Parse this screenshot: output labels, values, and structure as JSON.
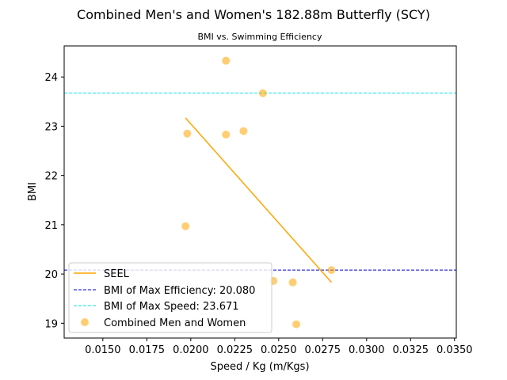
{
  "chart_data": {
    "type": "scatter",
    "title": "Combined Men's and Women's 182.88m Butterfly (SCY)",
    "subtitle": "BMI vs. Swimming Efficiency",
    "xlabel": "Speed / Kg (m/Kgs)",
    "ylabel": "BMI",
    "xlim": [
      0.0128,
      0.0351
    ],
    "ylim": [
      18.7,
      24.63
    ],
    "xticks": [
      "0.0150",
      "0.0175",
      "0.0200",
      "0.0225",
      "0.0250",
      "0.0275",
      "0.0300",
      "0.0325",
      "0.0350"
    ],
    "xtick_values": [
      0.015,
      0.0175,
      0.02,
      0.0225,
      0.025,
      0.0275,
      0.03,
      0.0325,
      0.035
    ],
    "yticks": [
      "19",
      "20",
      "21",
      "22",
      "23",
      "24"
    ],
    "ytick_values": [
      19,
      20,
      21,
      22,
      23,
      24
    ],
    "grid": false,
    "legend_position": "bottom-left",
    "series": [
      {
        "name": "Combined Men and Women",
        "kind": "scatter",
        "color": "#FFA500",
        "x": [
          0.022,
          0.0241,
          0.0198,
          0.022,
          0.023,
          0.0197,
          0.028,
          0.0247,
          0.0258,
          0.026
        ],
        "y": [
          24.33,
          23.67,
          22.85,
          22.83,
          22.9,
          20.97,
          20.08,
          19.86,
          19.83,
          18.98
        ]
      },
      {
        "name": "SEEL",
        "kind": "line",
        "color": "#FFA500",
        "x": [
          0.0197,
          0.028
        ],
        "y": [
          23.17,
          19.83
        ]
      },
      {
        "name": "BMI of Max Efficiency: 20.080",
        "kind": "hline",
        "color": "#0000CC",
        "y": 20.08
      },
      {
        "name": "BMI of Max Speed: 23.671",
        "kind": "hline",
        "color": "#00E5EE",
        "y": 23.671
      }
    ],
    "legend": [
      "SEEL",
      "BMI of Max Efficiency: 20.080",
      "BMI of Max Speed: 23.671",
      "Combined Men and Women"
    ]
  }
}
